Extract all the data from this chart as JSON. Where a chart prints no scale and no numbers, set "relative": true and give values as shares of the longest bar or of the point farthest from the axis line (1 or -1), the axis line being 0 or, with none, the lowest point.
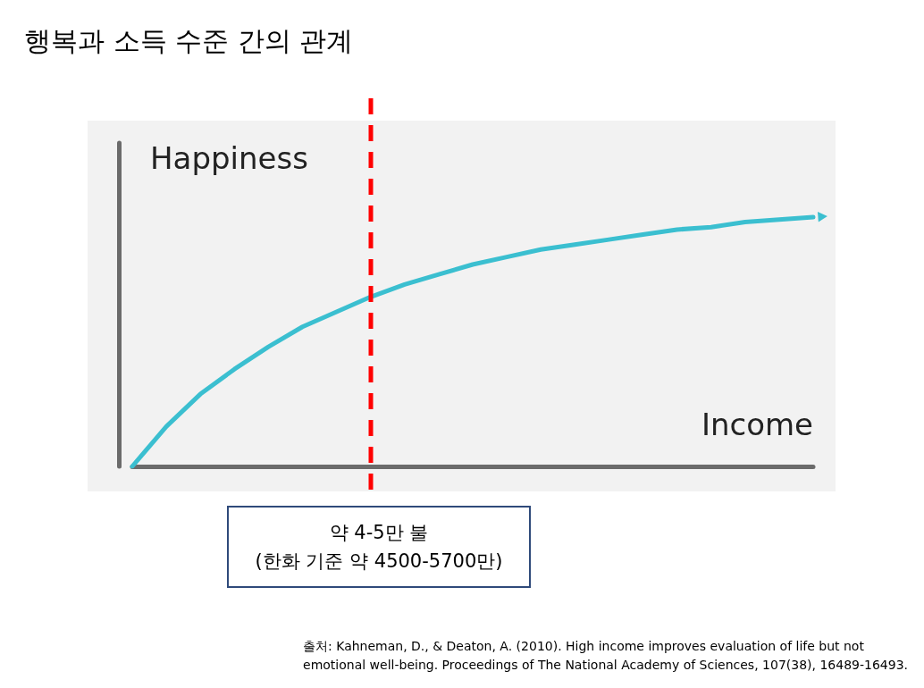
{
  "chart_data": {
    "type": "line",
    "title": "행복과 소득 수준 간의 관계",
    "xlabel": "Income",
    "ylabel": "Happiness",
    "relative": true,
    "categories": [
      null,
      null,
      null,
      null,
      null,
      null,
      null,
      null,
      null,
      null,
      null,
      null,
      null,
      null,
      null,
      null,
      null,
      null,
      null,
      null,
      null
    ],
    "series": [
      {
        "color": "#3bbfd0",
        "values": [
          0,
          0.16,
          0.29,
          0.39,
          0.48,
          0.56,
          0.62,
          0.68,
          0.73,
          0.77,
          0.81,
          0.84,
          0.87,
          0.89,
          0.91,
          0.93,
          0.95,
          0.96,
          0.98,
          0.99,
          1
        ]
      }
    ],
    "annotations": [
      "약 4-5만 불\n(한화 기준 약 4500-5700만)",
      "출처: Kahneman, D., & Deaton, A. (2010). High income improves evaluation of life but not\nemotional well-being. Proceedings of The National Academy of Sciences, 107(38), 16489-16493."
    ],
    "grid": false
  }
}
